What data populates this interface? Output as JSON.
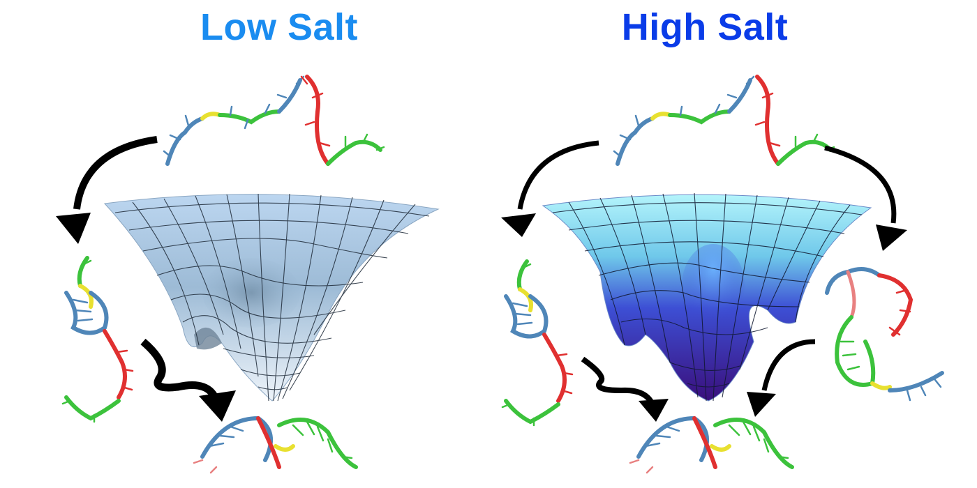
{
  "panels": [
    {
      "title": "Low Salt",
      "title_color": "#1a8cf0"
    },
    {
      "title": "High Salt",
      "title_color": "#0a3ce8"
    }
  ],
  "colors": {
    "strand_blue": "#4f86b8",
    "strand_red": "#e03030",
    "strand_green": "#3cc23c",
    "strand_yellow": "#e8e030",
    "arrow": "#000000",
    "low_surface_top": "#bcd6f0",
    "low_surface_bottom": "#e8f0f8",
    "high_surface_top": "#a8f0fa",
    "high_surface_mid": "#3c5ad8",
    "high_surface_bottom": "#3a1080"
  },
  "icons": [
    "curved-arrow-icon",
    "squiggle-arrow-icon",
    "energy-funnel-icon",
    "dna-strand-icon"
  ]
}
